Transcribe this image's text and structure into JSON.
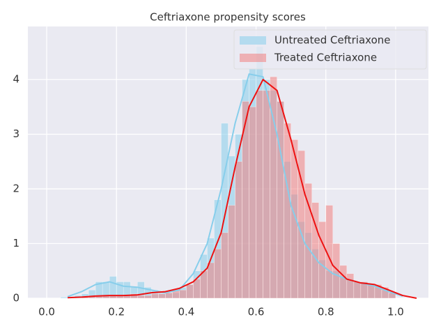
{
  "chart_data": {
    "type": "histogram",
    "title": "Ceftriaxone propensity scores",
    "xlim": [
      -0.054,
      1.094
    ],
    "ylim": [
      0,
      4.97
    ],
    "xticks": [
      {
        "value": 0,
        "label": "0.0"
      },
      {
        "value": 0.2,
        "label": "0.2"
      },
      {
        "value": 0.4,
        "label": "0.4"
      },
      {
        "value": 0.6,
        "label": "0.6"
      },
      {
        "value": 0.8,
        "label": "0.8"
      },
      {
        "value": 1,
        "label": "1.0"
      }
    ],
    "yticks": [
      0,
      1,
      2,
      3,
      4
    ],
    "grid": true,
    "legend": "upper right",
    "kde_x": [
      0.02,
      0.06,
      0.1,
      0.14,
      0.18,
      0.22,
      0.26,
      0.3,
      0.34,
      0.38,
      0.42,
      0.46,
      0.5,
      0.54,
      0.58,
      0.62,
      0.66,
      0.7,
      0.74,
      0.78,
      0.82,
      0.86,
      0.9,
      0.94,
      0.98,
      1.02,
      1.06
    ],
    "series": [
      {
        "name": "Untreated Ceftriaxone",
        "color": "#87ceeb",
        "line_color": "#87ceeb",
        "bins": [
          0.04,
          0.06,
          0.08,
          0.1,
          0.12,
          0.14,
          0.16,
          0.18,
          0.2,
          0.22,
          0.24,
          0.26,
          0.28,
          0.3,
          0.32,
          0.34,
          0.36,
          0.38,
          0.4,
          0.42,
          0.44,
          0.46,
          0.48,
          0.5,
          0.52,
          0.54,
          0.56,
          0.58,
          0.6,
          0.62,
          0.64,
          0.66,
          0.68,
          0.7,
          0.72,
          0.74,
          0.76,
          0.78,
          0.8,
          0.82,
          0.84,
          0.86,
          0.88,
          0.9,
          0.92,
          0.94,
          0.96,
          0.98,
          1.0
        ],
        "values": [
          0.02,
          0.02,
          0.05,
          0.08,
          0.15,
          0.3,
          0.3,
          0.4,
          0.3,
          0.3,
          0.2,
          0.3,
          0.2,
          0.15,
          0.1,
          0.1,
          0.1,
          0.2,
          0.25,
          0.5,
          0.8,
          1.1,
          1.8,
          3.2,
          2.6,
          3.0,
          4.0,
          4.2,
          4.6,
          4.0,
          3.8,
          3.6,
          2.5,
          1.9,
          1.4,
          1.2,
          0.9,
          0.7,
          0.5,
          0.5,
          0.4,
          0.35,
          0.3,
          0.3,
          0.25,
          0.2,
          0.15,
          0.1
        ],
        "kde": [
          null,
          0.03,
          0.12,
          0.25,
          0.3,
          0.22,
          0.2,
          0.15,
          0.1,
          0.15,
          0.45,
          1.0,
          2.0,
          3.2,
          4.1,
          4.05,
          3.0,
          1.7,
          1.0,
          0.65,
          0.45,
          0.35,
          0.28,
          0.22,
          0.12,
          0.04,
          null
        ]
      },
      {
        "name": "Treated Ceftriaxone",
        "color": "#f08080",
        "line_color": "#ee1111",
        "bins": [
          0.1,
          0.12,
          0.14,
          0.16,
          0.18,
          0.2,
          0.22,
          0.24,
          0.26,
          0.28,
          0.3,
          0.32,
          0.34,
          0.36,
          0.38,
          0.4,
          0.42,
          0.44,
          0.46,
          0.48,
          0.5,
          0.52,
          0.54,
          0.56,
          0.58,
          0.6,
          0.62,
          0.64,
          0.66,
          0.68,
          0.7,
          0.72,
          0.74,
          0.76,
          0.78,
          0.8,
          0.82,
          0.84,
          0.86,
          0.88,
          0.9,
          0.92,
          0.94,
          0.96,
          0.98,
          1.0
        ],
        "values": [
          0.02,
          0.03,
          0.05,
          0.05,
          0.05,
          0.05,
          0.05,
          0.08,
          0.05,
          0.05,
          0.08,
          0.08,
          0.1,
          0.15,
          0.15,
          0.25,
          0.35,
          0.5,
          0.65,
          0.9,
          1.2,
          1.7,
          2.5,
          3.6,
          3.5,
          3.8,
          3.8,
          4.05,
          3.6,
          3.2,
          2.9,
          2.7,
          2.1,
          1.75,
          1.4,
          1.7,
          1.0,
          0.6,
          0.45,
          0.3,
          0.3,
          0.25,
          0.25,
          0.2,
          0.1
        ],
        "kde": [
          null,
          0.01,
          0.02,
          0.04,
          0.05,
          0.05,
          0.06,
          0.1,
          0.12,
          0.18,
          0.3,
          0.55,
          1.2,
          2.4,
          3.5,
          4.0,
          3.8,
          2.9,
          1.9,
          1.15,
          0.6,
          0.35,
          0.28,
          0.25,
          0.15,
          0.05,
          0.0
        ]
      }
    ]
  }
}
